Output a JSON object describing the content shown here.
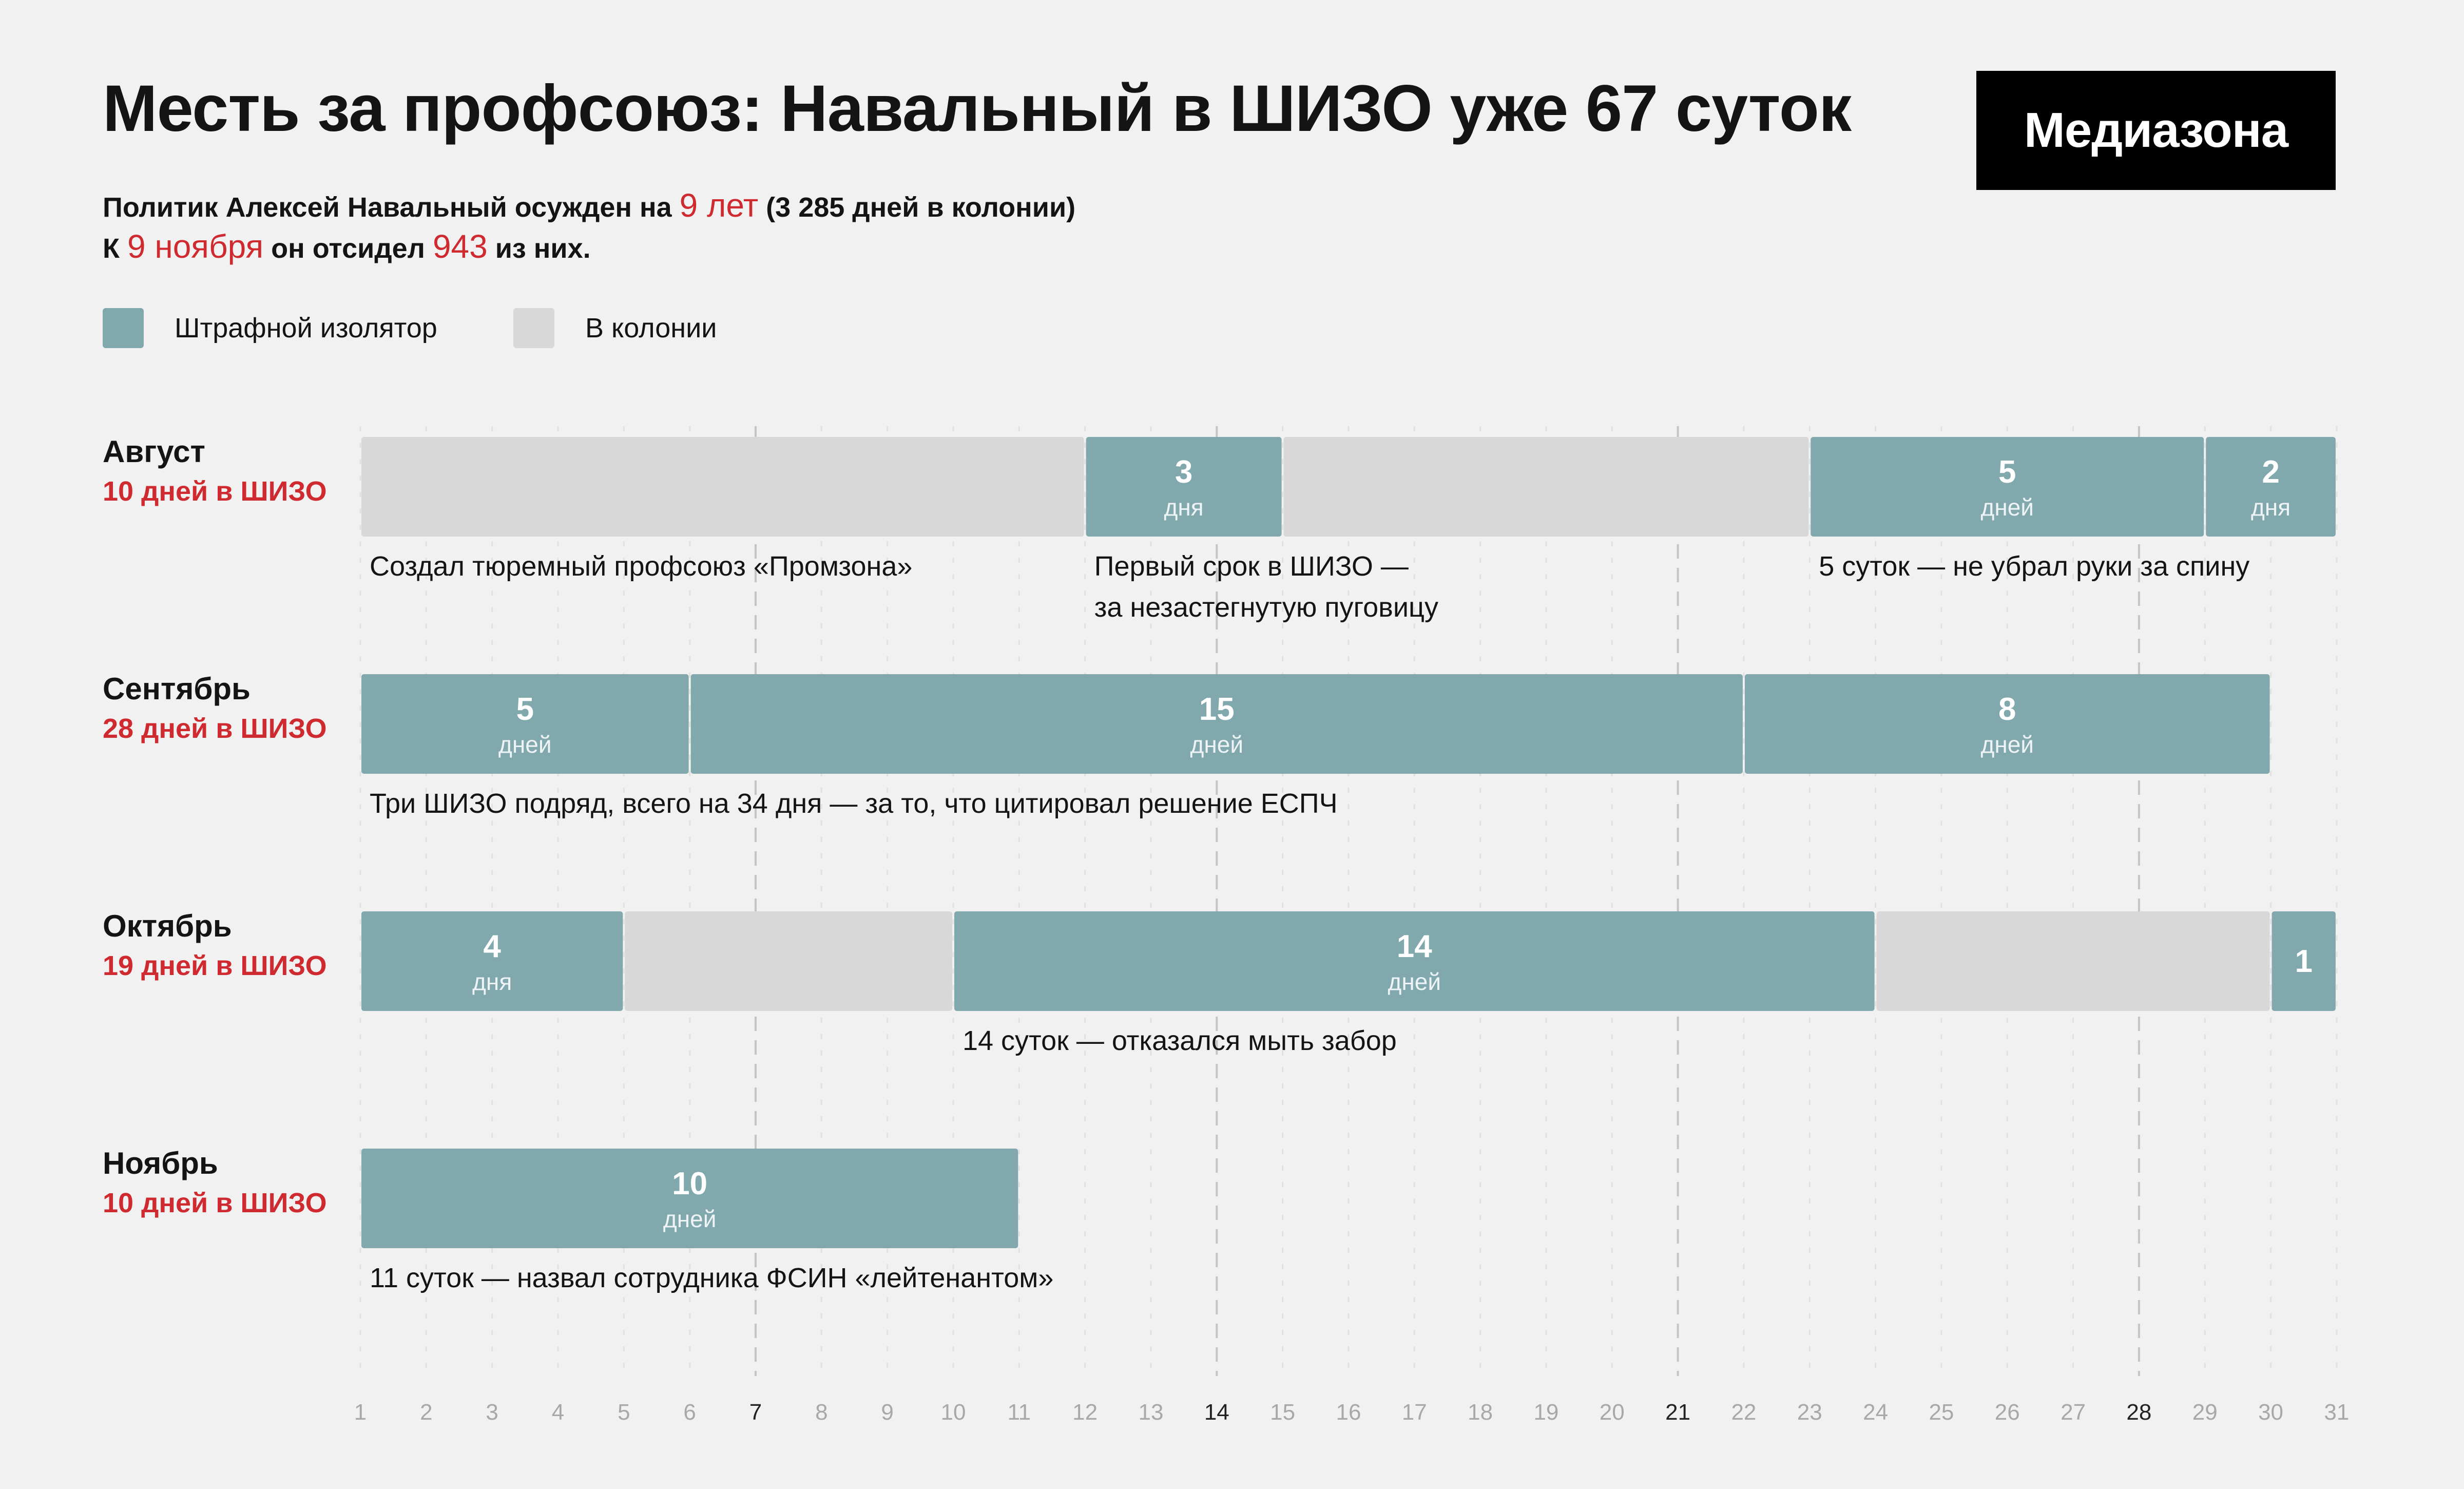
{
  "header": {
    "title": "Месть за профсоюз: Навальный в ШИЗО уже 67 суток",
    "logo": "Медиазона",
    "subtitle_line1": {
      "p1": "Политик Алексей Навальный осужден на ",
      "h1": "9 лет",
      "p2": " (3 285 дней в колонии)"
    },
    "subtitle_line2": {
      "p1": "К ",
      "h1": "9 ноября",
      "p2": " он отсидел ",
      "h2": "943",
      "p3": " из них."
    }
  },
  "legend": [
    {
      "label": "Штрафной изолятор",
      "color": "#81a8ad"
    },
    {
      "label": "В колонии",
      "color": "#d8d8d8"
    }
  ],
  "colors": {
    "shizo": "#81a8ad",
    "colony": "#d8d8d8",
    "accent": "#cf2a30",
    "background": "#f1f1f1"
  },
  "chart_data": {
    "type": "bar",
    "x_ticks": [
      1,
      2,
      3,
      4,
      5,
      6,
      7,
      8,
      9,
      10,
      11,
      12,
      13,
      14,
      15,
      16,
      17,
      18,
      19,
      20,
      21,
      22,
      23,
      24,
      25,
      26,
      27,
      28,
      29,
      30,
      31
    ],
    "x_emphasized_ticks": [
      7,
      14,
      21,
      28
    ],
    "xlim": [
      1,
      31
    ],
    "months": [
      {
        "name": "Август",
        "summary": "10 дней в ШИЗО",
        "segments": [
          {
            "type": "colony",
            "from": 1,
            "to": 12
          },
          {
            "type": "shizo",
            "from": 12,
            "to": 15,
            "value": "3",
            "unit": "дня"
          },
          {
            "type": "colony",
            "from": 15,
            "to": 23
          },
          {
            "type": "shizo",
            "from": 23,
            "to": 29,
            "value": "5",
            "unit": "дней"
          },
          {
            "type": "shizo",
            "from": 29,
            "to": 31,
            "value": "2",
            "unit": "дня"
          }
        ],
        "notes": [
          {
            "at": 1,
            "text": [
              "Создал тюремный профсоюз «Промзона»"
            ]
          },
          {
            "at": 12,
            "text": [
              "Первый срок в ШИЗО —",
              "за незастегнутую пуговицу"
            ]
          },
          {
            "at": 23,
            "text": [
              "5 суток — не убрал руки за спину"
            ]
          }
        ]
      },
      {
        "name": "Сентябрь",
        "summary": "28 дней в ШИЗО",
        "segments": [
          {
            "type": "shizo",
            "from": 1,
            "to": 6,
            "value": "5",
            "unit": "дней"
          },
          {
            "type": "shizo",
            "from": 6,
            "to": 22,
            "value": "15",
            "unit": "дней"
          },
          {
            "type": "shizo",
            "from": 22,
            "to": 30,
            "value": "8",
            "unit": "дней"
          }
        ],
        "notes": [
          {
            "at": 1,
            "text": [
              "Три ШИЗО подряд, всего на 34 дня — за то, что цитировал решение ЕСПЧ"
            ]
          }
        ]
      },
      {
        "name": "Октябрь",
        "summary": "19 дней в ШИЗО",
        "segments": [
          {
            "type": "shizo",
            "from": 1,
            "to": 5,
            "value": "4",
            "unit": "дня"
          },
          {
            "type": "colony",
            "from": 5,
            "to": 10
          },
          {
            "type": "shizo",
            "from": 10,
            "to": 24,
            "value": "14",
            "unit": "дней"
          },
          {
            "type": "colony",
            "from": 24,
            "to": 30
          },
          {
            "type": "shizo",
            "from": 30,
            "to": 31,
            "value": "1",
            "unit": ""
          }
        ],
        "notes": [
          {
            "at": 10,
            "text": [
              "14 суток — отказался мыть забор"
            ]
          }
        ]
      },
      {
        "name": "Ноябрь",
        "summary": "10 дней в ШИЗО",
        "segments": [
          {
            "type": "shizo",
            "from": 1,
            "to": 11,
            "value": "10",
            "unit": "дней"
          }
        ],
        "notes": [
          {
            "at": 1,
            "text": [
              "11 суток — назвал сотрудника ФСИН «лейтенантом»"
            ]
          }
        ]
      }
    ]
  }
}
